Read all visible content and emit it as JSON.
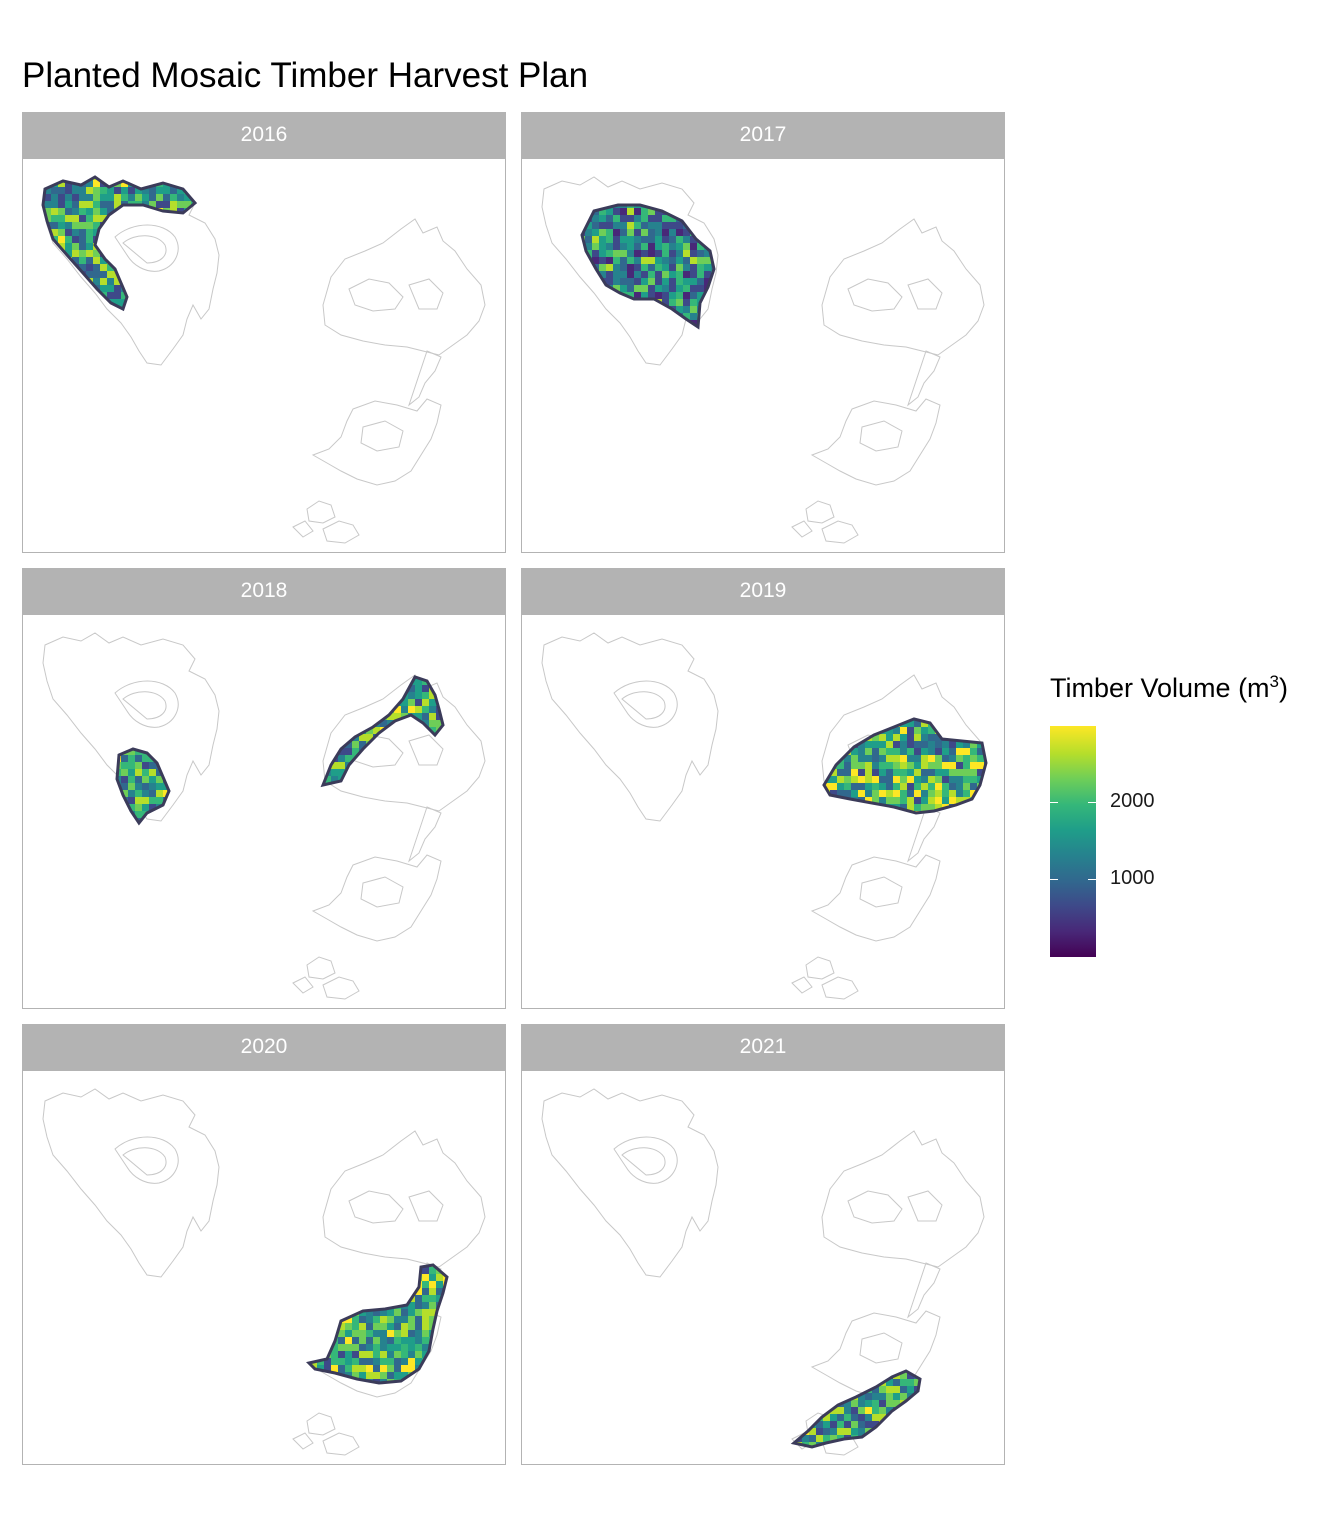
{
  "title": "Planted Mosaic Timber Harvest Plan",
  "legend": {
    "title": "Timber Volume (m",
    "title_sup": "3",
    "title_close": ")",
    "breaks": [
      "2000",
      "1000"
    ],
    "palette": [
      "#440154",
      "#482878",
      "#3e4989",
      "#31688e",
      "#26828e",
      "#1f9e89",
      "#35b779",
      "#6ece58",
      "#b5de2b",
      "#fde725"
    ]
  },
  "panels": [
    {
      "year": "2016",
      "harvest_block": "northwest"
    },
    {
      "year": "2017",
      "harvest_block": "central-west"
    },
    {
      "year": "2018",
      "harvest_block": "west-south and north-east"
    },
    {
      "year": "2019",
      "harvest_block": "east-central"
    },
    {
      "year": "2020",
      "harvest_block": "south-central"
    },
    {
      "year": "2021",
      "harvest_block": "far south"
    }
  ],
  "colors": {
    "strip": "#b3b3b3",
    "outline": "#c8c8c8",
    "harvest_border": "#3b3b5a"
  }
}
